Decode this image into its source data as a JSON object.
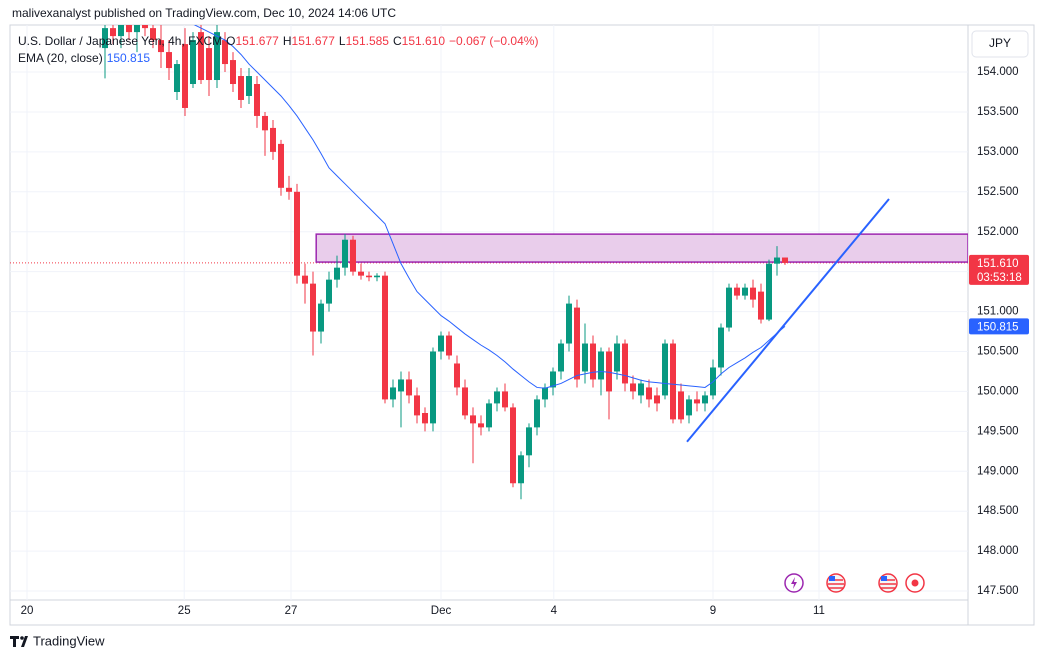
{
  "header": "malivexanalyst published on TradingView.com, Dec 10, 2024 14:06 UTC",
  "footer": "TradingView",
  "chart_data": {
    "type": "candlestick",
    "legend": {
      "symbol": "U.S. Dollar / Japanese Yen, 4h, FXCM",
      "ohlc": [
        {
          "k": "O",
          "v": "151.677"
        },
        {
          "k": "H",
          "v": "151.677"
        },
        {
          "k": "L",
          "v": "151.585"
        },
        {
          "k": "C",
          "v": "151.610"
        }
      ],
      "change": "−0.067 (−0.04%)",
      "ema_name": "EMA (20, close)",
      "ema_value": "150.815"
    },
    "currency": "JPY",
    "up_color": "#089981",
    "down_color": "#f23645",
    "ema_color": "#2962ff",
    "open": [
      154.3,
      154.55,
      154.45,
      154.6,
      154.5,
      154.62,
      154.55,
      154.4,
      154.25,
      153.75,
      154.35,
      153.85,
      154.5,
      154.3,
      153.9,
      154.4,
      154.15,
      153.95,
      153.7,
      153.85,
      153.45,
      153.3,
      153.1,
      152.55,
      152.5,
      151.45,
      151.35,
      150.75,
      151.1,
      151.4,
      151.55,
      151.9,
      151.5,
      151.45,
      151.43,
      151.45,
      149.9,
      150.0,
      150.15,
      149.95,
      149.73,
      149.6,
      150.5,
      150.7,
      150.35,
      150.05,
      149.7,
      149.6,
      149.55,
      149.85,
      150.0,
      149.8,
      148.85,
      149.2,
      149.55,
      149.9,
      150.05,
      150.25,
      150.6,
      151.05,
      150.25,
      150.6,
      150.15,
      150.5,
      150.25,
      150.6,
      150.1,
      149.95,
      150.05,
      149.95,
      149.95,
      150.6,
      150.0,
      149.7,
      149.9,
      149.85,
      149.95,
      150.3,
      150.8,
      151.3,
      151.2,
      151.3,
      151.25,
      150.9,
      151.6,
      151.677
    ],
    "high": [
      154.65,
      154.7,
      154.68,
      154.72,
      154.7,
      154.75,
      154.7,
      154.6,
      154.4,
      154.15,
      154.55,
      154.5,
      154.62,
      154.45,
      154.6,
      154.5,
      154.25,
      154.05,
      154.05,
      153.95,
      153.5,
      153.4,
      153.15,
      152.7,
      152.6,
      151.6,
      151.5,
      151.15,
      151.5,
      151.7,
      151.97,
      151.95,
      151.6,
      151.5,
      151.48,
      151.5,
      150.15,
      150.25,
      150.25,
      150.05,
      149.8,
      150.55,
      150.75,
      150.75,
      150.45,
      150.15,
      149.8,
      149.7,
      149.9,
      150.05,
      150.1,
      149.85,
      149.25,
      149.6,
      149.95,
      150.1,
      150.3,
      150.65,
      151.2,
      151.15,
      150.85,
      150.7,
      150.55,
      150.55,
      150.7,
      150.65,
      150.2,
      150.15,
      150.15,
      150.05,
      150.65,
      150.65,
      150.1,
      149.95,
      150.0,
      150.0,
      150.4,
      150.85,
      151.35,
      151.35,
      151.35,
      151.4,
      151.35,
      151.65,
      151.82,
      151.677
    ],
    "low": [
      153.92,
      154.35,
      154.3,
      154.4,
      154.25,
      154.45,
      154.3,
      154.05,
      153.9,
      153.65,
      153.45,
      153.8,
      153.85,
      153.7,
      153.8,
      154.0,
      153.75,
      153.55,
      153.6,
      153.3,
      152.95,
      152.9,
      152.45,
      152.4,
      151.35,
      151.1,
      150.45,
      150.6,
      151.0,
      151.3,
      151.45,
      151.45,
      151.4,
      151.38,
      151.38,
      149.85,
      149.8,
      149.55,
      149.85,
      149.6,
      149.5,
      149.5,
      150.4,
      150.4,
      149.95,
      149.65,
      149.1,
      149.45,
      149.5,
      149.75,
      149.75,
      148.8,
      148.65,
      149.05,
      149.45,
      149.8,
      149.95,
      150.15,
      150.5,
      150.05,
      150.1,
      150.05,
      149.95,
      149.65,
      150.15,
      150.0,
      149.9,
      149.85,
      149.8,
      149.75,
      149.9,
      149.6,
      149.6,
      149.6,
      149.75,
      149.75,
      149.9,
      150.2,
      150.75,
      151.15,
      151.15,
      151.05,
      150.85,
      150.88,
      151.45,
      151.585
    ],
    "close": [
      154.55,
      154.45,
      154.6,
      154.5,
      154.62,
      154.55,
      154.4,
      154.25,
      154.05,
      154.1,
      153.55,
      154.4,
      153.9,
      153.9,
      154.5,
      154.1,
      153.85,
      153.65,
      153.95,
      153.45,
      153.27,
      153.0,
      152.55,
      152.5,
      151.45,
      151.35,
      150.75,
      151.1,
      151.4,
      151.55,
      151.9,
      151.5,
      151.45,
      151.43,
      151.45,
      149.9,
      150.05,
      150.15,
      149.95,
      149.7,
      149.6,
      150.5,
      150.7,
      150.45,
      150.05,
      149.7,
      149.6,
      149.55,
      149.85,
      150.0,
      149.8,
      148.85,
      149.2,
      149.55,
      149.9,
      150.05,
      150.25,
      150.6,
      151.1,
      150.15,
      150.6,
      150.15,
      150.5,
      150.0,
      150.6,
      150.1,
      150.0,
      150.1,
      149.9,
      149.85,
      150.6,
      149.65,
      149.65,
      149.9,
      149.85,
      149.95,
      150.3,
      150.8,
      151.3,
      151.2,
      151.3,
      151.15,
      150.9,
      151.6,
      151.677,
      151.61
    ],
    "ema": [
      null,
      null,
      null,
      null,
      null,
      null,
      null,
      null,
      null,
      null,
      null,
      154.6,
      154.55,
      154.5,
      154.45,
      154.4,
      154.32,
      154.22,
      154.1,
      154.0,
      153.9,
      153.8,
      153.7,
      153.58,
      153.45,
      153.3,
      153.15,
      152.98,
      152.8,
      152.7,
      152.6,
      152.5,
      152.4,
      152.3,
      152.2,
      152.1,
      151.85,
      151.6,
      151.42,
      151.25,
      151.15,
      151.05,
      150.95,
      150.88,
      150.8,
      150.72,
      150.65,
      150.58,
      150.52,
      150.45,
      150.37,
      150.28,
      150.2,
      150.12,
      150.05,
      150.04,
      150.07,
      150.1,
      150.15,
      150.2,
      150.22,
      150.24,
      150.25,
      150.24,
      150.22,
      150.2,
      150.17,
      150.14,
      150.12,
      150.11,
      150.1,
      150.09,
      150.08,
      150.07,
      150.06,
      150.05,
      150.12,
      150.22,
      150.3,
      150.36,
      150.42,
      150.49,
      150.55,
      150.64,
      150.73,
      150.815
    ],
    "xlim": [
      -11.875,
      107.875
    ],
    "xticks": [
      {
        "value": -9.75,
        "label": "20"
      },
      {
        "value": 9.9,
        "label": "25"
      },
      {
        "value": 23.25,
        "label": "27"
      },
      {
        "value": 42,
        "label": "Dec"
      },
      {
        "value": 56.1,
        "label": "4"
      },
      {
        "value": 76,
        "label": "9"
      },
      {
        "value": 89.25,
        "label": "11"
      }
    ],
    "ylim": [
      147.388,
      154.589
    ],
    "yticks": [
      {
        "value": 147.5,
        "label": "147.500"
      },
      {
        "value": 148,
        "label": "148.000"
      },
      {
        "value": 148.5,
        "label": "148.500"
      },
      {
        "value": 149,
        "label": "149.000"
      },
      {
        "value": 149.5,
        "label": "149.500"
      },
      {
        "value": 150,
        "label": "150.000"
      },
      {
        "value": 150.5,
        "label": "150.500"
      },
      {
        "value": 151,
        "label": "151.000"
      },
      {
        "value": 151.5,
        "label": "151.500"
      },
      {
        "value": 152,
        "label": "152.000"
      },
      {
        "value": 152.5,
        "label": "152.500"
      },
      {
        "value": 153,
        "label": "153.000"
      },
      {
        "value": 153.5,
        "label": "153.500"
      },
      {
        "value": 154,
        "label": "154.000"
      }
    ],
    "grid": true,
    "zone": {
      "low": 151.62,
      "high": 151.97,
      "start": 26.4,
      "fill": "#e9cdeb",
      "stroke": "#9c27b0"
    },
    "trendline": {
      "x": [
        72.75,
        98
      ],
      "y": [
        149.37,
        152.41
      ],
      "color": "#2962ff"
    },
    "price_tag": {
      "value": 151.61,
      "label": "151.610",
      "countdown": "03:53:18"
    },
    "ema_tag": {
      "value": 150.815,
      "label": "150.815"
    }
  }
}
